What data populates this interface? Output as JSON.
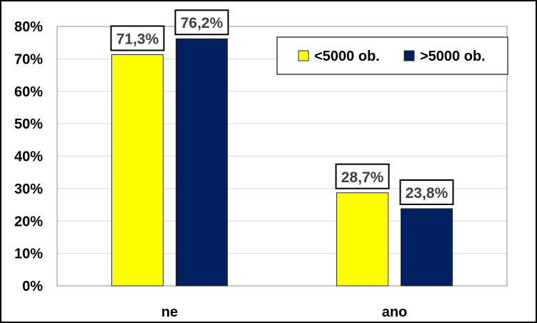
{
  "chart_data": {
    "type": "bar",
    "categories": [
      "ne",
      "ano"
    ],
    "series": [
      {
        "name": "<5000 ob.",
        "values": [
          71.3,
          28.7
        ],
        "labels": [
          "71,3%",
          "28,7%"
        ],
        "color": "#FFFF00"
      },
      {
        "name": ">5000 ob.",
        "values": [
          76.2,
          23.8
        ],
        "labels": [
          "76,2%",
          "23,8%"
        ],
        "color": "#002060"
      }
    ],
    "ylim": [
      0,
      80
    ],
    "y_ticks": [
      {
        "value": 0,
        "label": "0%"
      },
      {
        "value": 10,
        "label": "10%"
      },
      {
        "value": 20,
        "label": "20%"
      },
      {
        "value": 30,
        "label": "30%"
      },
      {
        "value": 40,
        "label": "40%"
      },
      {
        "value": 50,
        "label": "50%"
      },
      {
        "value": 60,
        "label": "60%"
      },
      {
        "value": 70,
        "label": "70%"
      },
      {
        "value": 80,
        "label": "80%"
      }
    ],
    "grid": true,
    "legend_position": "top-right"
  }
}
